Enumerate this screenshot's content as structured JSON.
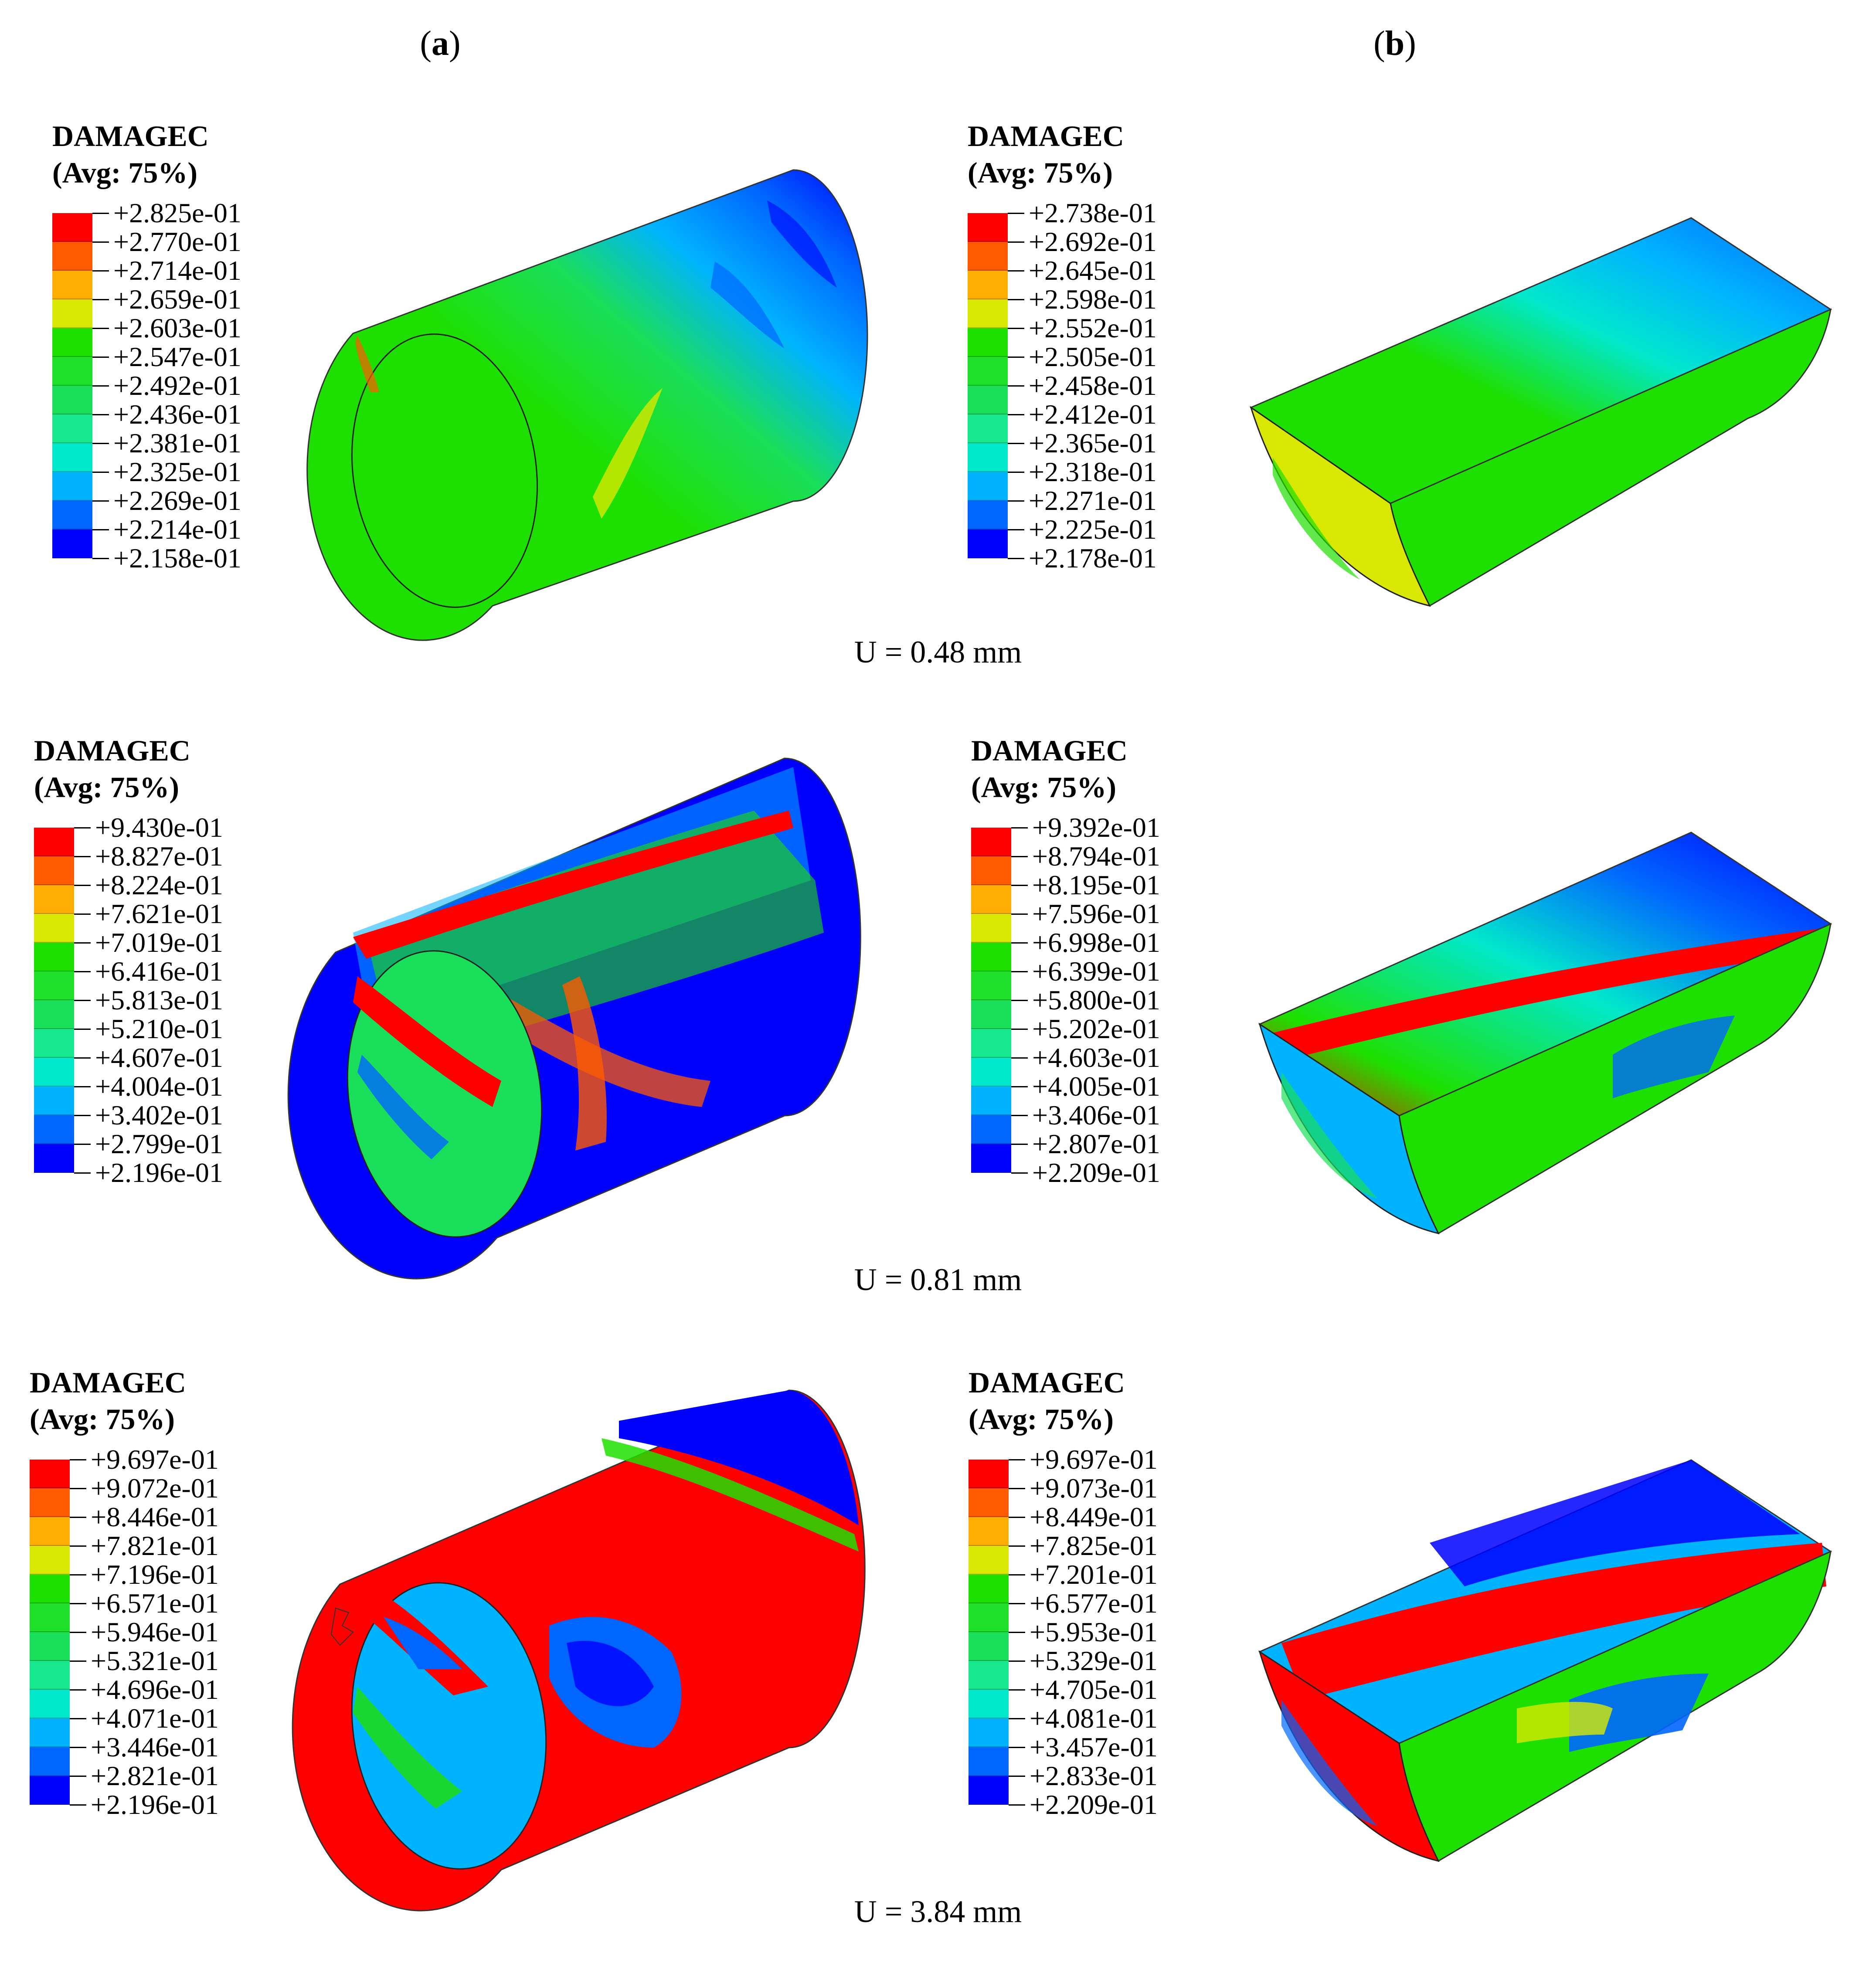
{
  "columns": {
    "a": {
      "open": "(",
      "letter": "a",
      "close": ")"
    },
    "b": {
      "open": "(",
      "letter": "b",
      "close": ")"
    }
  },
  "colors": {
    "scale": [
      "#ff0000",
      "#ff5a00",
      "#ffad00",
      "#d8e800",
      "#1ee000",
      "#1ee028",
      "#19df5a",
      "#18e88d",
      "#00e8cc",
      "#00b3ff",
      "#0066ff",
      "#0000ff"
    ]
  },
  "rows": [
    {
      "caption": "U = 0.48 mm",
      "left": {
        "title": "DAMAGEC",
        "avg": "(Avg: 75%)",
        "ticks": [
          "+2.825e-01",
          "+2.770e-01",
          "+2.714e-01",
          "+2.659e-01",
          "+2.603e-01",
          "+2.547e-01",
          "+2.492e-01",
          "+2.436e-01",
          "+2.381e-01",
          "+2.325e-01",
          "+2.269e-01",
          "+2.214e-01",
          "+2.158e-01"
        ]
      },
      "right": {
        "title": "DAMAGEC",
        "avg": "(Avg: 75%)",
        "ticks": [
          "+2.738e-01",
          "+2.692e-01",
          "+2.645e-01",
          "+2.598e-01",
          "+2.552e-01",
          "+2.505e-01",
          "+2.458e-01",
          "+2.412e-01",
          "+2.365e-01",
          "+2.318e-01",
          "+2.271e-01",
          "+2.225e-01",
          "+2.178e-01"
        ]
      }
    },
    {
      "caption": "U = 0.81 mm",
      "left": {
        "title": "DAMAGEC",
        "avg": "(Avg: 75%)",
        "ticks": [
          "+9.430e-01",
          "+8.827e-01",
          "+8.224e-01",
          "+7.621e-01",
          "+7.019e-01",
          "+6.416e-01",
          "+5.813e-01",
          "+5.210e-01",
          "+4.607e-01",
          "+4.004e-01",
          "+3.402e-01",
          "+2.799e-01",
          "+2.196e-01"
        ]
      },
      "right": {
        "title": "DAMAGEC",
        "avg": "(Avg: 75%)",
        "ticks": [
          "+9.392e-01",
          "+8.794e-01",
          "+8.195e-01",
          "+7.596e-01",
          "+6.998e-01",
          "+6.399e-01",
          "+5.800e-01",
          "+5.202e-01",
          "+4.603e-01",
          "+4.005e-01",
          "+3.406e-01",
          "+2.807e-01",
          "+2.209e-01"
        ]
      }
    },
    {
      "caption": "U = 3.84 mm",
      "left": {
        "title": "DAMAGEC",
        "avg": "(Avg: 75%)",
        "ticks": [
          "+9.697e-01",
          "+9.072e-01",
          "+8.446e-01",
          "+7.821e-01",
          "+7.196e-01",
          "+6.571e-01",
          "+5.946e-01",
          "+5.321e-01",
          "+4.696e-01",
          "+4.071e-01",
          "+3.446e-01",
          "+2.821e-01",
          "+2.196e-01"
        ]
      },
      "right": {
        "title": "DAMAGEC",
        "avg": "(Avg: 75%)",
        "ticks": [
          "+9.697e-01",
          "+9.073e-01",
          "+8.449e-01",
          "+7.825e-01",
          "+7.201e-01",
          "+6.577e-01",
          "+5.953e-01",
          "+5.329e-01",
          "+4.705e-01",
          "+4.081e-01",
          "+3.457e-01",
          "+2.833e-01",
          "+2.209e-01"
        ]
      }
    }
  ]
}
